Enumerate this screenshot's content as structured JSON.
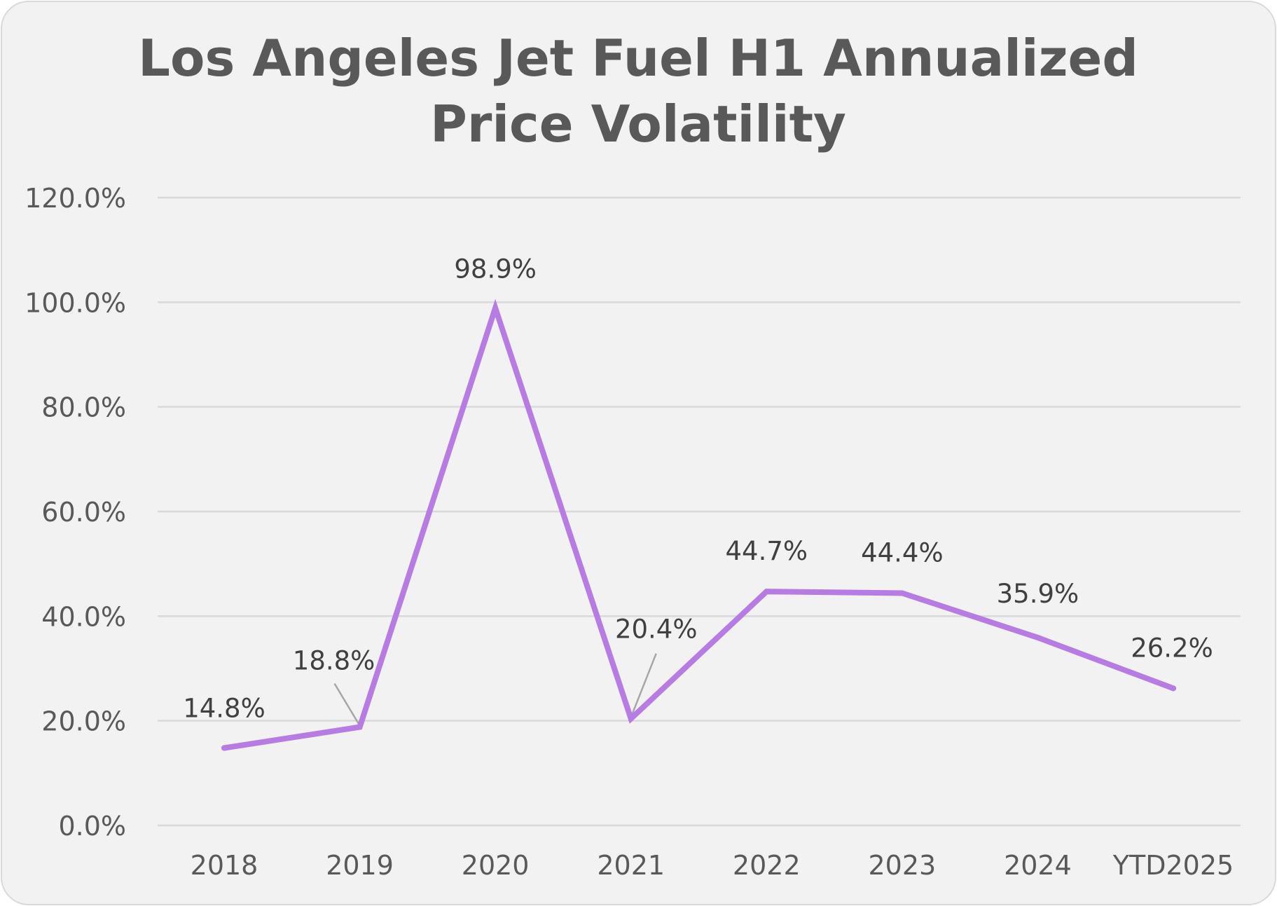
{
  "chart_data": {
    "type": "line",
    "title": "Los Angeles Jet Fuel H1 Annualized Price Volatility",
    "title_lines": [
      "Los Angeles Jet Fuel H1 Annualized",
      "Price Volatility"
    ],
    "xlabel": "",
    "ylabel": "",
    "categories": [
      "2018",
      "2019",
      "2020",
      "2021",
      "2022",
      "2023",
      "2024",
      "YTD2025"
    ],
    "series": [
      {
        "name": "Annualized Price Volatility",
        "color": "#B77CE4",
        "values": [
          14.8,
          18.8,
          98.9,
          20.4,
          44.7,
          44.4,
          35.9,
          26.2
        ],
        "data_labels": [
          "14.8%",
          "18.8%",
          "98.9%",
          "20.4%",
          "44.7%",
          "44.4%",
          "35.9%",
          "26.2%"
        ]
      }
    ],
    "ylim": [
      0,
      120
    ],
    "yticks": [
      0,
      20,
      40,
      60,
      80,
      100,
      120
    ],
    "ytick_labels": [
      "0.0%",
      "20.0%",
      "40.0%",
      "60.0%",
      "80.0%",
      "100.0%",
      "120.0%"
    ],
    "grid": true,
    "legend": "none"
  }
}
